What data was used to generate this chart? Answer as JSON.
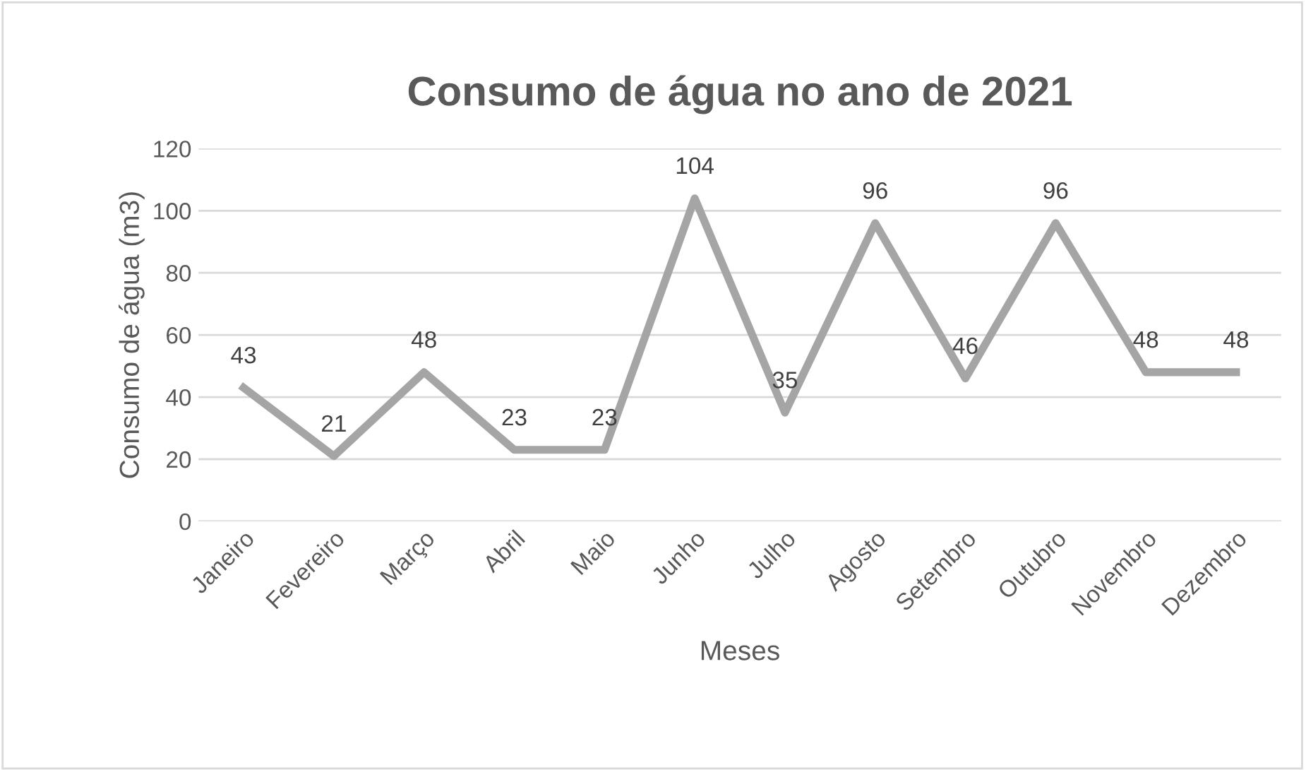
{
  "chart_data": {
    "type": "line",
    "title": "Consumo de água no ano de 2021",
    "xlabel": "Meses",
    "ylabel": "Consumo de água (m3)",
    "categories": [
      "Janeiro",
      "Fevereiro",
      "Março",
      "Abril",
      "Maio",
      "Junho",
      "Julho",
      "Agosto",
      "Setembro",
      "Outubro",
      "Novembro",
      "Dezembro"
    ],
    "series": [
      {
        "color": "#a5a5a5",
        "values": [
          43,
          21,
          48,
          23,
          23,
          104,
          35,
          96,
          46,
          96,
          48,
          48
        ]
      }
    ],
    "ylim": [
      0,
      120
    ],
    "yticks": [
      0,
      20,
      40,
      60,
      80,
      100,
      120
    ],
    "grid": "y",
    "data_labels": true,
    "marker": "none",
    "line_style": "solid",
    "legend": false
  }
}
